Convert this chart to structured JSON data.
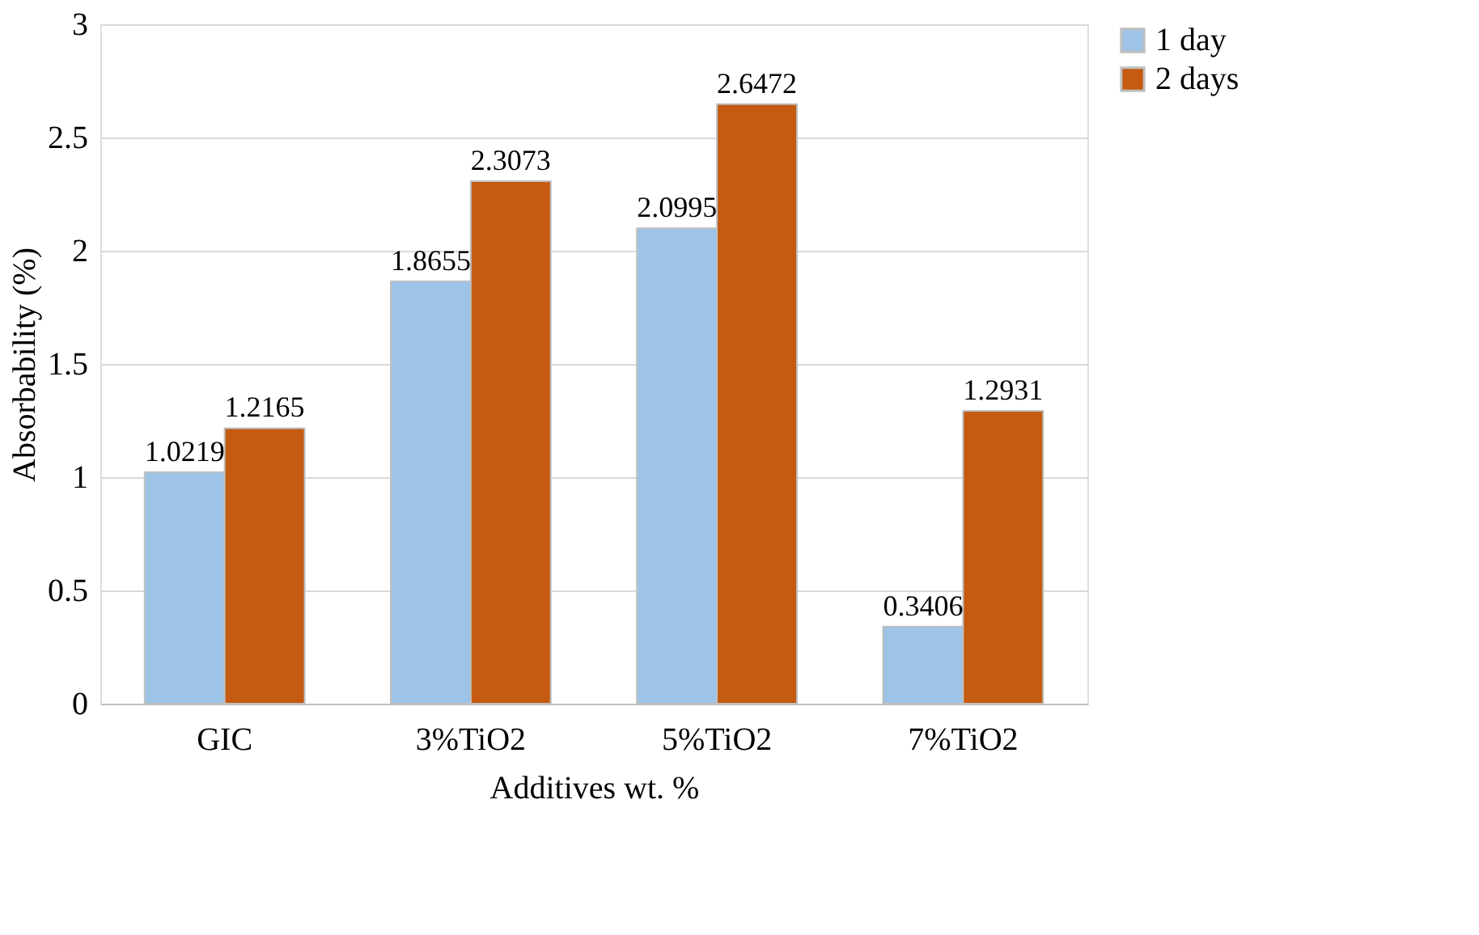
{
  "chart_data": {
    "type": "bar",
    "xlabel": "Additives wt. %",
    "ylabel": "Absorbability (%)",
    "categories": [
      "GIC",
      "3%TiO2",
      "5%TiO2",
      "7%TiO2"
    ],
    "series": [
      {
        "name": "1 day",
        "color": "#9dc3e6",
        "values": [
          1.0219,
          1.8655,
          2.0995,
          0.3406
        ]
      },
      {
        "name": "2 days",
        "color": "#c55a11",
        "values": [
          1.2165,
          2.3073,
          2.6472,
          1.2931
        ]
      }
    ],
    "ylim": [
      0,
      3
    ],
    "yticks": [
      0,
      0.5,
      1,
      1.5,
      2,
      2.5,
      3
    ],
    "grid": "y",
    "legend": "right",
    "data_labels": true
  }
}
